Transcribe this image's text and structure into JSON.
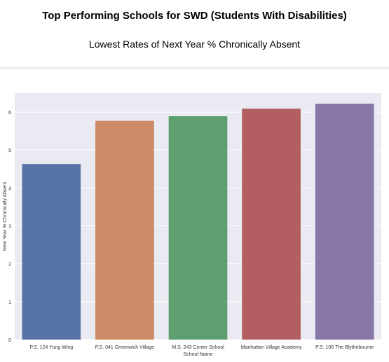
{
  "header": {
    "title": "Top Performing Schools for SWD (Students With Disabilities)",
    "subtitle": "Lowest Rates of Next Year % Chronically Absent"
  },
  "chart_data": {
    "type": "bar",
    "categories": [
      "P.S. 124 Yung Wing",
      "P.S. 041 Greenwich Village",
      "M.S. 243 Center School",
      "Manhattan Village Academy",
      "P.S. 105 The Blythebourne"
    ],
    "values": [
      4.63,
      5.77,
      5.89,
      6.09,
      6.22
    ],
    "colors": [
      "#5874a6",
      "#cd8a66",
      "#5d9f6e",
      "#b35f61",
      "#8877a8"
    ],
    "xlabel": "School Name",
    "ylabel": "Next Year % Chronically Absent",
    "ylim": [
      0,
      6.5
    ],
    "yticks": [
      "0",
      "1",
      "2",
      "3",
      "4",
      "5",
      "6"
    ],
    "grid": true,
    "background": "#eaeaf2"
  }
}
